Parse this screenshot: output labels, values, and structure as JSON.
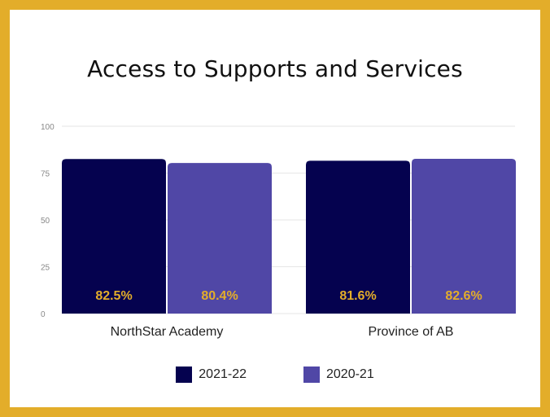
{
  "chart_data": {
    "type": "bar",
    "title": "Access to Supports and Services",
    "xlabel": "",
    "ylabel": "",
    "categories": [
      "NorthStar Academy",
      "Province of AB"
    ],
    "series": [
      {
        "name": "2021-22",
        "values": [
          82.5,
          81.6
        ],
        "labels": [
          "82.5%",
          "81.6%"
        ],
        "color": "#05024f"
      },
      {
        "name": "2020-21",
        "values": [
          80.4,
          82.6
        ],
        "labels": [
          "80.4%",
          "82.6%"
        ],
        "color": "#5047a6"
      }
    ],
    "ylim": [
      0,
      100
    ],
    "yticks": [
      0,
      25,
      50,
      75,
      100
    ],
    "grid": true,
    "legend_position": "bottom",
    "data_label_color": "#e3ad2a",
    "frame_color": "#e3ad2a"
  }
}
